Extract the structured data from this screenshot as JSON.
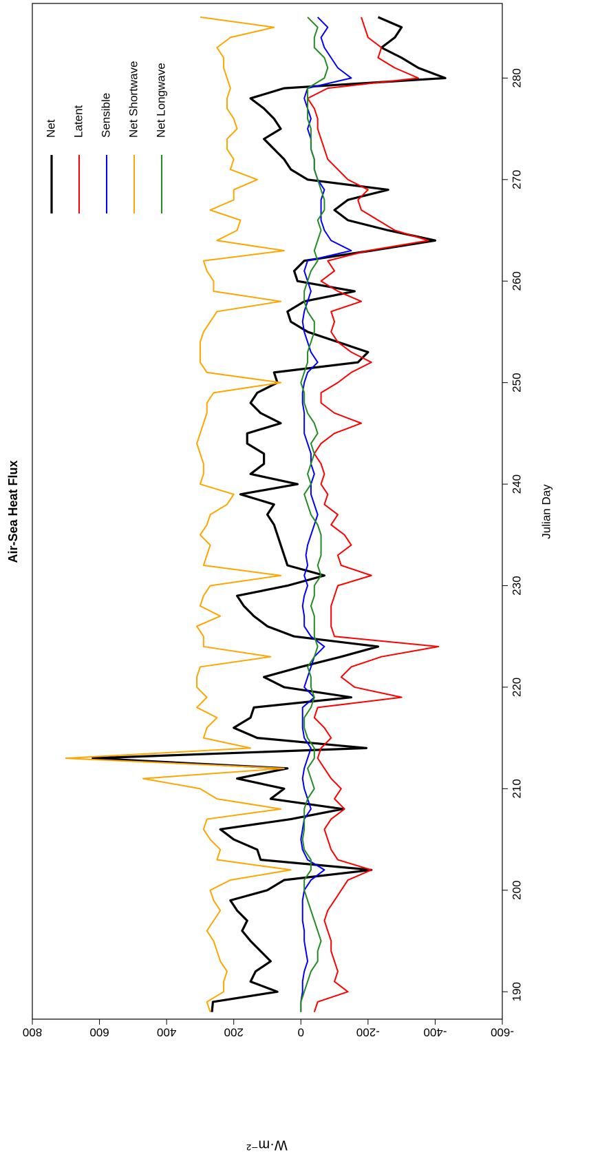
{
  "chart_data": {
    "type": "line",
    "title": "Air-Sea Heat Flux",
    "xlabel": "Julian Day",
    "ylabel": "W·m⁻²",
    "xlim": [
      187.3,
      287.35
    ],
    "ylim": [
      -600,
      800
    ],
    "xticks": [
      190,
      200,
      210,
      220,
      230,
      240,
      250,
      260,
      270,
      280
    ],
    "yticks": [
      -600,
      -400,
      -200,
      0,
      200,
      400,
      600,
      800
    ],
    "legend": "top-right",
    "x": [
      188,
      189,
      190,
      191,
      192,
      193,
      194,
      195,
      196,
      197,
      198,
      199,
      200,
      201,
      202,
      203,
      204,
      205,
      206,
      207,
      208,
      209,
      210,
      211,
      212,
      213,
      214,
      215,
      216,
      217,
      218,
      219,
      220,
      221,
      222,
      223,
      224,
      225,
      226,
      227,
      228,
      229,
      230,
      231,
      232,
      233,
      234,
      235,
      236,
      237,
      238,
      239,
      240,
      241,
      242,
      243,
      244,
      245,
      246,
      247,
      248,
      249,
      250,
      251,
      252,
      253,
      254,
      255,
      256,
      257,
      258,
      259,
      260,
      261,
      262,
      263,
      264,
      265,
      266,
      267,
      268,
      269,
      270,
      271,
      272,
      273,
      274,
      275,
      276,
      277,
      278,
      279,
      280,
      281,
      282,
      283,
      284,
      285,
      286
    ],
    "series": [
      {
        "name": "Net",
        "color": "#000000",
        "width": 3.2,
        "values": [
          265,
          262,
          70,
          150,
          135,
          90,
          120,
          150,
          175,
          160,
          190,
          210,
          100,
          50,
          -210,
          120,
          130,
          200,
          240,
          30,
          -125,
          90,
          50,
          190,
          40,
          620,
          -195,
          130,
          200,
          150,
          140,
          -150,
          50,
          110,
          0,
          -120,
          -230,
          20,
          100,
          140,
          170,
          190,
          40,
          -70,
          40,
          50,
          60,
          70,
          80,
          100,
          80,
          180,
          10,
          150,
          110,
          110,
          160,
          160,
          60,
          120,
          150,
          130,
          70,
          80,
          -170,
          -200,
          -110,
          -20,
          30,
          40,
          -10,
          -160,
          10,
          20,
          -10,
          -210,
          -400,
          -260,
          -140,
          -100,
          -140,
          -260,
          -20,
          30,
          50,
          80,
          110,
          60,
          80,
          110,
          150,
          50,
          -430,
          -350,
          -300,
          -240,
          -280,
          -300,
          -230
        ]
      },
      {
        "name": "Latent",
        "color": "#ff0000",
        "width": 2,
        "values": [
          -40,
          -50,
          -140,
          -100,
          -110,
          -100,
          -90,
          -90,
          -80,
          -70,
          -80,
          -100,
          -120,
          -140,
          -210,
          -110,
          -90,
          -80,
          -70,
          -90,
          -130,
          -100,
          -120,
          -90,
          -70,
          -50,
          -60,
          -90,
          -70,
          -40,
          -50,
          -300,
          -160,
          -120,
          -150,
          -240,
          -410,
          -100,
          -90,
          -90,
          -90,
          -100,
          -110,
          -210,
          -120,
          -110,
          -150,
          -130,
          -90,
          -110,
          -70,
          -80,
          -60,
          -70,
          -60,
          -40,
          -60,
          -100,
          -180,
          -100,
          -60,
          -60,
          -110,
          -150,
          -210,
          -150,
          -110,
          -90,
          -100,
          -90,
          -180,
          -110,
          -60,
          -100,
          -80,
          -200,
          -380,
          -280,
          -230,
          -180,
          -170,
          -200,
          -140,
          -110,
          -80,
          -70,
          -60,
          -50,
          -50,
          -40,
          -20,
          -80,
          -350,
          -280,
          -230,
          -240,
          -200,
          -190,
          -180
        ]
      },
      {
        "name": "Sensible",
        "color": "#0000ff",
        "width": 2,
        "values": [
          0,
          0,
          -5,
          -5,
          -10,
          -20,
          -15,
          -10,
          -10,
          -5,
          -5,
          -5,
          -10,
          -30,
          -70,
          -20,
          -5,
          0,
          -5,
          -10,
          -30,
          -20,
          -10,
          -5,
          -10,
          -20,
          -30,
          -10,
          -5,
          -5,
          -5,
          -40,
          -10,
          -20,
          -30,
          -40,
          -70,
          -30,
          -10,
          -10,
          -5,
          -10,
          -20,
          -10,
          -20,
          -15,
          -20,
          -30,
          -40,
          -50,
          -40,
          -30,
          -30,
          -40,
          -30,
          -30,
          -20,
          -10,
          -10,
          -10,
          -5,
          -5,
          -10,
          -20,
          -50,
          -30,
          -20,
          -10,
          -5,
          -10,
          -20,
          -30,
          -20,
          -10,
          -20,
          -150,
          -90,
          -70,
          -60,
          -60,
          -60,
          -70,
          -50,
          -40,
          -40,
          -30,
          -30,
          -20,
          -30,
          -20,
          -10,
          -20,
          -150,
          -110,
          -90,
          -70,
          -60,
          -80,
          -50
        ]
      },
      {
        "name": "Net Shortwave",
        "color": "#ffa500",
        "width": 2,
        "values": [
          270,
          280,
          230,
          230,
          220,
          240,
          250,
          260,
          280,
          260,
          240,
          260,
          270,
          210,
          30,
          250,
          240,
          270,
          290,
          280,
          60,
          250,
          300,
          470,
          50,
          700,
          150,
          290,
          280,
          250,
          310,
          280,
          310,
          310,
          300,
          90,
          290,
          290,
          310,
          240,
          300,
          290,
          270,
          60,
          290,
          280,
          270,
          300,
          280,
          270,
          220,
          200,
          300,
          290,
          290,
          300,
          310,
          300,
          290,
          280,
          280,
          260,
          60,
          280,
          300,
          300,
          300,
          290,
          270,
          250,
          60,
          260,
          260,
          280,
          290,
          50,
          250,
          190,
          180,
          270,
          200,
          200,
          130,
          210,
          200,
          220,
          220,
          190,
          200,
          220,
          220,
          210,
          220,
          230,
          230,
          250,
          210,
          80,
          300
        ]
      },
      {
        "name": "Net Longwave",
        "color": "#228b22",
        "width": 2,
        "values": [
          0,
          0,
          -10,
          -20,
          -30,
          -50,
          -50,
          -60,
          -50,
          -40,
          -30,
          -20,
          -10,
          -10,
          -30,
          -30,
          -10,
          -5,
          -10,
          -10,
          -10,
          -20,
          -40,
          -30,
          -20,
          -40,
          -40,
          -20,
          -10,
          -10,
          -30,
          -40,
          -30,
          -30,
          -20,
          -40,
          -50,
          -40,
          -40,
          -40,
          -30,
          -40,
          -40,
          -60,
          -50,
          -60,
          -60,
          -60,
          -50,
          -30,
          -20,
          -10,
          -30,
          -20,
          -30,
          -40,
          -30,
          -50,
          -40,
          -20,
          -10,
          -10,
          0,
          -10,
          -20,
          -20,
          -30,
          -40,
          -40,
          -20,
          -10,
          -10,
          -20,
          -30,
          -50,
          -40,
          -50,
          -60,
          -50,
          -70,
          -70,
          -60,
          -50,
          -40,
          -40,
          -30,
          -30,
          -30,
          -20,
          -20,
          -20,
          -20,
          -70,
          -80,
          -70,
          -40,
          -40,
          -50,
          -20
        ]
      }
    ]
  }
}
